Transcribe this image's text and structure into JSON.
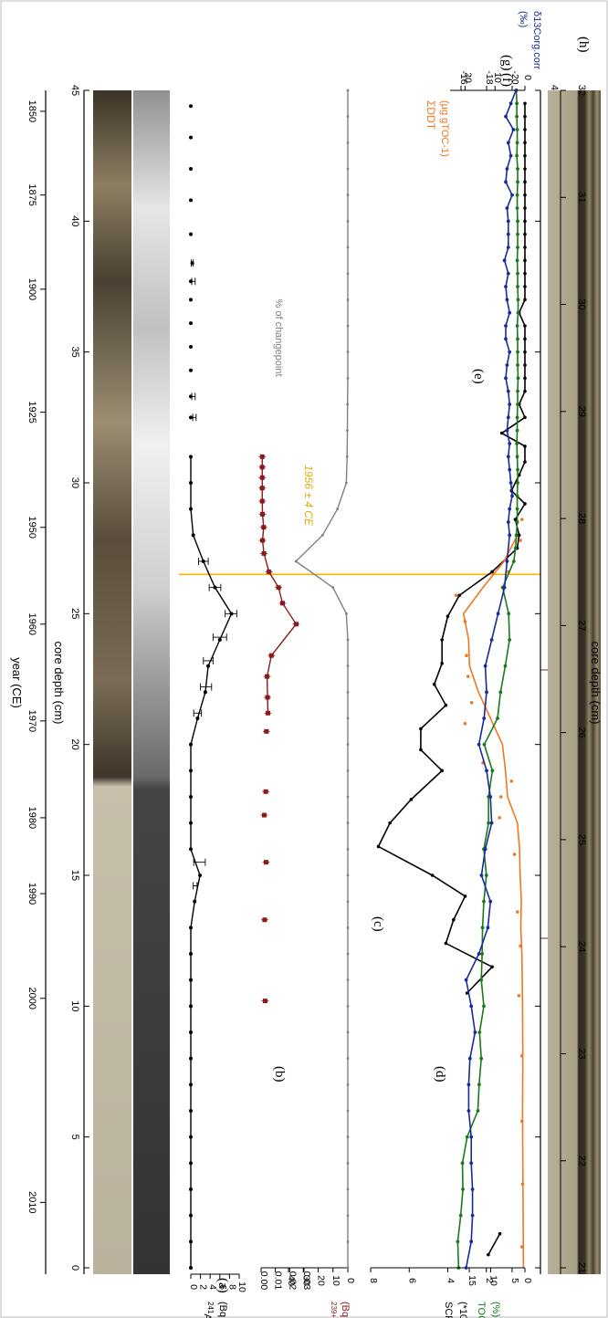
{
  "colors": {
    "am": "#000000",
    "pu": "#8b1a1a",
    "changepoint": "#808080",
    "scp": "#000000",
    "ddt": "#f07820",
    "toc": "#1a7a1a",
    "d13c": "#1a2a9a",
    "marker": "#f5b800",
    "core_dark": "#3a3428",
    "core_light": "#c9c2ad"
  },
  "axes": {
    "year_label": "year (CE)",
    "year_ticks": [
      "2010",
      "2000",
      "1990",
      "1980",
      "1970",
      "1960",
      "1950",
      "1925",
      "1900",
      "1875",
      "1850"
    ],
    "depth_label": "core depth (cm)",
    "depth_ticks": [
      "0",
      "5",
      "10",
      "15",
      "20",
      "25",
      "30",
      "35",
      "40",
      "45"
    ],
    "photo_depth_ticks": [
      "21",
      "22",
      "23",
      "24",
      "25",
      "26",
      "27",
      "28",
      "29",
      "30",
      "31",
      "32"
    ]
  },
  "marker": {
    "label": "1956 ± 4 CE",
    "depth_cm": 26.5
  },
  "panels": {
    "a": "(a)",
    "b": "(b)",
    "c": "(c)",
    "d": "(d)",
    "e": "(e)",
    "f": "(f)",
    "g": "(g)",
    "h": "(h)"
  },
  "chart_data": [
    {
      "type": "line",
      "panel": "(a)",
      "ylabel_sup": "241",
      "ylabel_main": "Am",
      "ylabel_unit": "(Bq kg-1)",
      "ylim": [
        0,
        10
      ],
      "ticks": [
        "0",
        "2",
        "4",
        "6",
        "8",
        "10"
      ],
      "x": [
        0,
        1,
        2,
        3,
        4,
        5,
        6,
        7,
        8,
        9,
        10,
        11,
        12,
        13,
        14,
        15,
        16,
        17,
        18,
        19,
        20,
        21,
        22,
        23,
        24,
        25,
        26,
        27,
        28,
        29,
        30,
        31
      ],
      "values": [
        0,
        0,
        0,
        0,
        0,
        0,
        0,
        0,
        0,
        0,
        0,
        0,
        0,
        0,
        0.8,
        1.9,
        0,
        0,
        0,
        0,
        0,
        1.4,
        3,
        3.6,
        6,
        8.4,
        5,
        2.6,
        0.5,
        0,
        0,
        0
      ],
      "x2": [
        32.5,
        33.3,
        34.3,
        35.2,
        36.1,
        37,
        37.7,
        38.4,
        39.5,
        40.8,
        42,
        43.2,
        44.4
      ],
      "values2": [
        0,
        0,
        0,
        0,
        0,
        0,
        0,
        0.3,
        0,
        0,
        0,
        0,
        0
      ],
      "errors": [
        [
          14.6,
          0.5,
          1.3
        ],
        [
          15.5,
          0.6,
          3.0
        ],
        [
          21.2,
          0.6,
          2.2
        ],
        [
          22.2,
          2.0,
          4.3
        ],
        [
          23.2,
          2.6,
          4.6
        ],
        [
          24.1,
          4.6,
          7.4
        ],
        [
          25.0,
          7.1,
          9.5
        ],
        [
          26.0,
          3.8,
          6.2
        ],
        [
          27.0,
          1.6,
          3.6
        ],
        [
          32.5,
          0.4,
          1.1
        ],
        [
          33.3,
          0.2,
          0.9
        ],
        [
          37.7,
          0.2,
          0.9
        ],
        [
          38.4,
          0.1,
          0.5
        ]
      ]
    },
    {
      "type": "scatter",
      "panel": "(b)",
      "ylabel_sup": "239+240",
      "ylabel_main": "Pu",
      "ylabel_unit": "(Bq kg-1)",
      "ylim": [
        0,
        0.03
      ],
      "ticks": [
        "0.00",
        "0.01",
        "0.02",
        "0.03"
      ],
      "x": [
        10.2,
        13.3,
        15.5,
        17.3,
        18.2,
        20.5,
        21.2,
        21.8,
        22.6,
        23.4,
        24.6,
        25.4,
        26.0,
        26.6,
        27.3,
        27.8,
        28.3,
        28.8,
        29.3,
        29.8,
        30.2,
        30.6,
        31.0
      ],
      "values": [
        0.0028,
        0.0025,
        0.0035,
        0.0022,
        0.0033,
        0.0037,
        0.0048,
        0.0045,
        0.0042,
        0.0072,
        0.0245,
        0.015,
        0.0122,
        0.0055,
        0.002,
        0.001,
        0.0018,
        0.001,
        0.0008,
        0.0008,
        0.0008,
        0.0008,
        0.0008
      ],
      "series_line_from": 21.0
    },
    {
      "type": "line",
      "panel": "(c)",
      "ylabel": "% of changepoint",
      "ylim": [
        0,
        40
      ],
      "ticks": [
        "0",
        "10",
        "20",
        "30",
        "40"
      ],
      "x": [
        0,
        1,
        2,
        3,
        4,
        5,
        6,
        7,
        8,
        9,
        10,
        11,
        12,
        13,
        14,
        15,
        16,
        17,
        18,
        19,
        20,
        21,
        22,
        23,
        24,
        25,
        26,
        27,
        28,
        29,
        30,
        31,
        32,
        33,
        34,
        35,
        36,
        37,
        38,
        39,
        40,
        41,
        42,
        43,
        44,
        45
      ],
      "values": [
        0,
        0,
        0,
        0,
        0,
        0,
        0,
        0,
        0,
        0,
        0,
        0,
        0,
        0,
        0,
        0,
        0,
        0,
        0,
        0,
        0,
        0,
        0,
        0,
        0,
        1,
        10,
        35,
        17,
        7,
        1,
        0.5,
        0.3,
        0.2,
        0,
        0,
        0,
        0,
        0,
        0,
        0,
        0,
        0,
        0,
        0,
        0
      ]
    },
    {
      "type": "line",
      "panel": "(d)",
      "ylabel": "SCPs",
      "ylabel_unit": "(*103 kg-1 dw)",
      "ylim": [
        0,
        8
      ],
      "ticks": [
        "0",
        "2",
        "4",
        "6",
        "8"
      ],
      "segments": [
        {
          "x": [
            0.5,
            1.3
          ],
          "values": [
            1.9,
            1.3
          ]
        },
        {
          "x": [
            10.5,
            11.5,
            12.4,
            13.3,
            14.2,
            15.0,
            16.1,
            17.0,
            17.9,
            19.0,
            19.8,
            20.6,
            21.5,
            22.3,
            23.1,
            24.0,
            24.9,
            25.7,
            26.6,
            27.5,
            28.0,
            28.6,
            29.2,
            29.7,
            30.3,
            30.8,
            31.4,
            31.9,
            32.5,
            33.0,
            33.5,
            34.0,
            34.5,
            35.0,
            35.5,
            36.0,
            36.5,
            37.0,
            37.5,
            38.0,
            38.5,
            39.0,
            39.5,
            40.0,
            40.5,
            41.0,
            41.5,
            42.0,
            42.5,
            43.0,
            43.5,
            44.0,
            44.5
          ],
          "values": [
            3.0,
            1.7,
            4.1,
            3.7,
            3.1,
            4.8,
            7.6,
            7.0,
            5.9,
            4.3,
            5.4,
            5.4,
            4.1,
            4.7,
            4.3,
            4.3,
            4.0,
            3.4,
            1.7,
            0.4,
            0.3,
            0.5,
            0,
            0.7,
            0.3,
            0,
            0,
            1.2,
            0,
            0.3,
            0,
            0,
            0,
            0,
            0,
            0,
            0.3,
            0,
            0,
            0,
            0,
            0,
            0,
            0,
            0,
            0,
            0,
            0,
            0,
            0,
            0,
            0,
            0
          ]
        }
      ]
    },
    {
      "type": "line",
      "panel": "(e)",
      "ylabel": "ΣDDT",
      "ylabel_unit": "(µg gTOC-1)",
      "ylim": [
        0,
        25
      ],
      "ticks": [
        "0",
        "10",
        "20"
      ],
      "line_x": [
        0,
        2,
        4,
        6,
        8,
        10,
        12,
        13,
        14,
        15,
        16,
        17,
        18,
        19,
        20,
        21,
        22,
        23,
        24,
        25,
        26,
        27,
        28
      ],
      "line_values": [
        0.5,
        0.6,
        0.7,
        0.8,
        0.7,
        0.8,
        1.0,
        1.4,
        1.2,
        1.6,
        1.8,
        2.5,
        5.8,
        6.5,
        7.5,
        11.5,
        15.5,
        18.5,
        18.8,
        20.5,
        14.0,
        7.0,
        2.5
      ],
      "x": [
        0.8,
        3.2,
        5.6,
        8.1,
        10.4,
        12.3,
        13.6,
        15.8,
        17.2,
        18.0,
        18.6,
        19.3,
        20.8,
        21.6,
        22.6,
        23.4,
        24.7,
        25.7,
        26.6,
        27.8,
        28.6
      ],
      "values": [
        1.0,
        0.8,
        1.0,
        1.0,
        2.0,
        1.5,
        2.5,
        3.5,
        8.5,
        8.0,
        4.5,
        14.0,
        20.0,
        17.8,
        19.0,
        19.5,
        20.0,
        23.0,
        5.5,
        1.5,
        1.0
      ]
    },
    {
      "type": "line",
      "panel": "(f)",
      "ylabel": "TOC",
      "ylabel_unit": "(%)",
      "ylim": [
        2,
        18
      ],
      "ticks": [
        "5",
        "10",
        "15"
      ],
      "x": [
        0,
        1,
        2,
        3,
        4,
        5,
        6,
        7,
        8,
        9,
        10,
        11,
        12,
        13,
        14,
        15,
        16,
        17,
        18,
        19,
        20,
        21,
        22,
        23,
        24,
        25,
        26,
        27,
        27.5,
        28,
        28.5,
        29,
        29.5,
        30,
        30.5,
        31,
        31.5,
        32,
        32.5,
        33,
        33.5,
        34,
        34.5,
        35,
        35.5,
        36,
        36.5,
        37,
        37.5,
        38,
        38.5,
        39,
        39.5,
        40,
        40.5,
        41,
        41.5,
        42,
        42.5,
        43,
        43.5,
        44,
        44.5,
        45
      ],
      "values": [
        17.5,
        17.7,
        17.0,
        16.5,
        16.6,
        15.5,
        13.0,
        12.7,
        12.2,
        12.6,
        11.6,
        12.2,
        12.0,
        11.9,
        11.6,
        11.0,
        11.6,
        10.5,
        10.5,
        9.6,
        11.5,
        8.4,
        7.7,
        6.6,
        5.6,
        5.8,
        7.2,
        4.6,
        4.2,
        4.0,
        3.8,
        3.8,
        3.8,
        3.7,
        3.7,
        3.8,
        3.9,
        3.8,
        3.8,
        3.7,
        3.7,
        3.6,
        3.7,
        3.7,
        3.7,
        3.8,
        3.6,
        3.6,
        3.7,
        3.7,
        3.8,
        3.7,
        3.7,
        3.7,
        3.8,
        3.8,
        3.7,
        3.7,
        3.9,
        3.8,
        3.8,
        3.9,
        3.9,
        4.0
      ]
    },
    {
      "type": "line",
      "panel": "(g)",
      "ylabel": "δ13Corg.corr",
      "ylabel_unit": "(‰)",
      "ylim": [
        -21,
        -16
      ],
      "ticks": [
        "-20",
        "-18",
        "-16"
      ],
      "x": [
        0,
        1,
        2,
        3,
        4,
        5,
        6,
        7,
        8,
        9,
        10,
        11,
        12,
        13,
        14,
        15,
        16,
        17,
        18,
        19,
        20,
        21,
        22,
        23,
        24,
        25,
        26,
        27,
        28,
        28.5,
        29,
        29.5,
        30,
        30.5,
        31,
        31.5,
        32,
        32.5,
        33,
        33.5,
        34,
        34.5,
        35,
        35.5,
        36,
        36.5,
        37,
        37.5,
        38,
        38.5,
        39,
        39.5,
        40,
        40.5,
        41,
        41.5,
        42,
        42.5,
        43,
        43.5,
        44,
        44.5,
        45
      ],
      "values": [
        -16.4,
        -16.8,
        -16.9,
        -16.9,
        -16.8,
        -16.8,
        -16.6,
        -16.6,
        -16.7,
        -17.1,
        -16.8,
        -16.4,
        -17.4,
        -18.1,
        -18.3,
        -17.6,
        -17.9,
        -18.4,
        -18.3,
        -18.0,
        -17.4,
        -17.8,
        -18.0,
        -17.9,
        -18.4,
        -18.9,
        -19.4,
        -19.6,
        -19.8,
        -19.7,
        -19.8,
        -20.0,
        -19.9,
        -19.8,
        -19.7,
        -19.8,
        -19.6,
        -19.7,
        -19.8,
        -19.7,
        -19.5,
        -19.6,
        -19.8,
        -19.5,
        -19.5,
        -19.8,
        -19.6,
        -19.5,
        -19.7,
        -19.4,
        -19.7,
        -19.7,
        -19.7,
        -19.6,
        -20.0,
        -19.5,
        -19.6,
        -19.9,
        -19.7,
        -20.1,
        -19.5,
        -19.9,
        -20.3
      ]
    }
  ]
}
